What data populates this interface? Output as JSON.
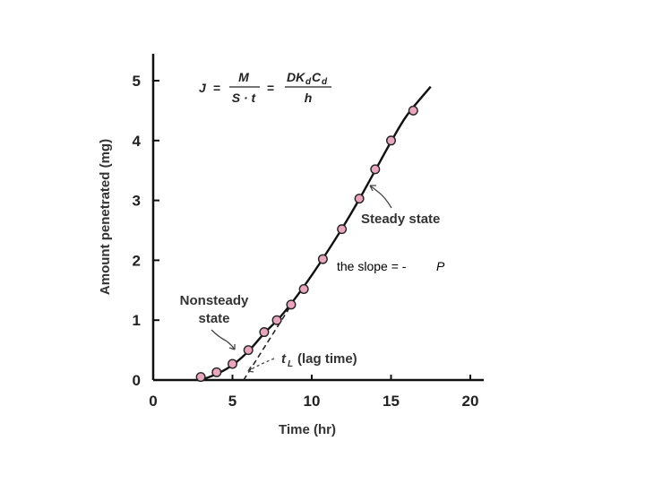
{
  "chart_data": {
    "type": "scatter",
    "xlabel": "Time (hr)",
    "ylabel": "Amount penetrated (mg)",
    "xlim": [
      0,
      20
    ],
    "ylim": [
      0,
      5
    ],
    "xticks": [
      0,
      5,
      10,
      15,
      20
    ],
    "yticks": [
      0,
      1,
      2,
      3,
      4,
      5
    ],
    "points": [
      {
        "x": 3.0,
        "y": 0.05
      },
      {
        "x": 4.0,
        "y": 0.13
      },
      {
        "x": 5.0,
        "y": 0.27
      },
      {
        "x": 6.0,
        "y": 0.5
      },
      {
        "x": 7.0,
        "y": 0.8
      },
      {
        "x": 7.8,
        "y": 1.0
      },
      {
        "x": 8.7,
        "y": 1.26
      },
      {
        "x": 9.5,
        "y": 1.52
      },
      {
        "x": 10.7,
        "y": 2.02
      },
      {
        "x": 11.9,
        "y": 2.52
      },
      {
        "x": 13.0,
        "y": 3.03
      },
      {
        "x": 14.0,
        "y": 3.52
      },
      {
        "x": 15.0,
        "y": 4.0
      },
      {
        "x": 16.4,
        "y": 4.5
      }
    ],
    "curve": [
      {
        "x": 3.0,
        "y": 0.0
      },
      {
        "x": 4.0,
        "y": 0.1
      },
      {
        "x": 5.0,
        "y": 0.25
      },
      {
        "x": 6.0,
        "y": 0.48
      },
      {
        "x": 7.0,
        "y": 0.78
      },
      {
        "x": 8.0,
        "y": 1.05
      },
      {
        "x": 9.0,
        "y": 1.38
      },
      {
        "x": 10.0,
        "y": 1.75
      },
      {
        "x": 11.0,
        "y": 2.15
      },
      {
        "x": 12.0,
        "y": 2.57
      },
      {
        "x": 13.0,
        "y": 3.02
      },
      {
        "x": 14.0,
        "y": 3.5
      },
      {
        "x": 15.0,
        "y": 3.98
      },
      {
        "x": 16.0,
        "y": 4.42
      },
      {
        "x": 17.5,
        "y": 4.9
      }
    ],
    "extrapolation": [
      {
        "x": 5.7,
        "y": 0.0
      },
      {
        "x": 8.7,
        "y": 1.25
      }
    ],
    "marker_color": "#e9a6bf",
    "line_color": "#111111"
  },
  "equation": {
    "lhs": "J",
    "eq1": "=",
    "frac1_num": "M",
    "frac1_den": "S · t",
    "eq2": "=",
    "frac2_num": "DK",
    "frac2_num_sub": "d",
    "frac2_num_c": "C",
    "frac2_num_c_sub": "d",
    "frac2_den": "h"
  },
  "annotations": {
    "steady_state": "Steady state",
    "nonsteady_line1": "Nonsteady",
    "nonsteady_line2": "state",
    "lag_symbol": "t",
    "lag_sub": "L",
    "lag_text": "(lag time)",
    "slope_prefix": "the slope = - ",
    "slope_var": "P"
  }
}
